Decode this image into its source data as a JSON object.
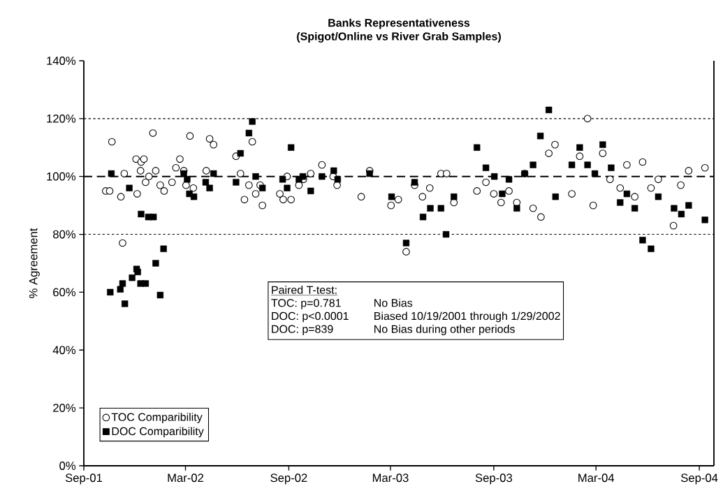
{
  "chart_data": {
    "type": "scatter",
    "title": "Banks Representativeness",
    "subtitle": "(Spigot/Online vs River Grab Samples)",
    "ylabel": "% Agreement",
    "xlim": [
      "2001-09-01",
      "2004-09-27"
    ],
    "xticks": [
      {
        "value": "2001-09-01",
        "label": "Sep-01"
      },
      {
        "value": "2002-03-01",
        "label": "Mar-02"
      },
      {
        "value": "2002-09-01",
        "label": "Sep-02"
      },
      {
        "value": "2003-03-01",
        "label": "Mar-03"
      },
      {
        "value": "2003-09-01",
        "label": "Sep-03"
      },
      {
        "value": "2004-03-01",
        "label": "Mar-04"
      },
      {
        "value": "2004-09-01",
        "label": "Sep-04"
      }
    ],
    "ylim": [
      0,
      140
    ],
    "yticks": [
      {
        "value": 0,
        "label": "0%"
      },
      {
        "value": 20,
        "label": "20%"
      },
      {
        "value": 40,
        "label": "40%"
      },
      {
        "value": 60,
        "label": "60%"
      },
      {
        "value": 80,
        "label": "80%"
      },
      {
        "value": 100,
        "label": "100%"
      },
      {
        "value": 120,
        "label": "120%"
      },
      {
        "value": 140,
        "label": "140%"
      }
    ],
    "legend": "bottom left",
    "ref_lines": [
      {
        "axis": "y",
        "value": 120,
        "line_style": "dotted",
        "color": "#000000"
      },
      {
        "axis": "y",
        "value": 100,
        "line_style": "dashed",
        "color": "#000000"
      },
      {
        "axis": "y",
        "value": 80,
        "line_style": "dotted",
        "color": "#000000"
      }
    ],
    "annotations": [
      "Paired T-test:",
      "TOC: p=0.781",
      "No Bias",
      "DOC: p<0.0001",
      "Biased 10/19/2001 through 1/29/2002",
      "DOC: p=839",
      "No Bias during other periods"
    ],
    "series": [
      {
        "name": "TOC Comparibility",
        "color": "#000000",
        "marker": "circle",
        "x": [
          "2001-10-10",
          "2001-10-17",
          "2001-10-21",
          "2001-11-06",
          "2001-11-09",
          "2001-11-12",
          "2001-12-03",
          "2001-12-05",
          "2001-12-11",
          "2001-12-12",
          "2001-12-17",
          "2001-12-20",
          "2001-12-26",
          "2002-01-02",
          "2002-01-07",
          "2002-01-15",
          "2002-01-22",
          "2002-02-05",
          "2002-02-12",
          "2002-02-19",
          "2002-02-26",
          "2002-03-02",
          "2002-03-09",
          "2002-03-15",
          "2002-04-07",
          "2002-04-13",
          "2002-04-20",
          "2002-05-30",
          "2002-06-07",
          "2002-06-14",
          "2002-06-22",
          "2002-06-28",
          "2002-07-04",
          "2002-07-12",
          "2002-07-16",
          "2002-08-16",
          "2002-08-22",
          "2002-08-29",
          "2002-09-05",
          "2002-09-19",
          "2002-09-27",
          "2002-10-10",
          "2002-10-30",
          "2002-11-19",
          "2002-11-26",
          "2003-01-08",
          "2003-01-23",
          "2003-03-02",
          "2003-03-15",
          "2003-03-29",
          "2003-04-13",
          "2003-04-27",
          "2003-05-10",
          "2003-05-30",
          "2003-06-09",
          "2003-06-22",
          "2003-08-02",
          "2003-08-18",
          "2003-09-01",
          "2003-09-14",
          "2003-09-28",
          "2003-10-12",
          "2003-10-26",
          "2003-11-10",
          "2003-11-24",
          "2003-12-08",
          "2003-12-19",
          "2004-01-18",
          "2004-02-01",
          "2004-02-15",
          "2004-02-25",
          "2004-03-13",
          "2004-03-26",
          "2004-04-13",
          "2004-04-25",
          "2004-05-09",
          "2004-05-23",
          "2004-06-07",
          "2004-06-20",
          "2004-07-17",
          "2004-07-30",
          "2004-08-13",
          "2004-09-11"
        ],
        "values": [
          95,
          95,
          112,
          93,
          77,
          101,
          106,
          94,
          102,
          105,
          106,
          98,
          100,
          115,
          102,
          97,
          95,
          98,
          103,
          106,
          102,
          97,
          114,
          96,
          102,
          113,
          111,
          107,
          101,
          92,
          97,
          112,
          94,
          97,
          90,
          94,
          92,
          100,
          92,
          97,
          99,
          101,
          104,
          100,
          97,
          93,
          102,
          90,
          92,
          74,
          97,
          93,
          96,
          101,
          101,
          91,
          95,
          98,
          94,
          91,
          95,
          91,
          101,
          89,
          86,
          108,
          111,
          94,
          107,
          120,
          90,
          108,
          99,
          96,
          104,
          93,
          105,
          96,
          99,
          83,
          97,
          102,
          103
        ]
      },
      {
        "name": "DOC Comparibility",
        "color": "#000000",
        "marker": "square",
        "x": [
          "2001-10-18",
          "2001-10-20",
          "2001-11-05",
          "2001-11-09",
          "2001-11-13",
          "2001-11-21",
          "2001-11-26",
          "2001-12-04",
          "2001-12-06",
          "2001-12-11",
          "2001-12-12",
          "2001-12-20",
          "2001-12-25",
          "2002-01-03",
          "2002-01-07",
          "2002-01-15",
          "2002-01-21",
          "2002-02-26",
          "2002-03-04",
          "2002-03-08",
          "2002-03-16",
          "2002-04-06",
          "2002-04-13",
          "2002-04-20",
          "2002-05-30",
          "2002-06-07",
          "2002-06-22",
          "2002-06-28",
          "2002-07-04",
          "2002-07-16",
          "2002-08-21",
          "2002-08-29",
          "2002-09-05",
          "2002-09-19",
          "2002-09-26",
          "2002-10-10",
          "2002-10-30",
          "2002-11-20",
          "2002-11-27",
          "2003-01-23",
          "2003-03-03",
          "2003-03-29",
          "2003-04-13",
          "2003-04-28",
          "2003-05-11",
          "2003-05-30",
          "2003-06-08",
          "2003-06-22",
          "2003-08-02",
          "2003-08-18",
          "2003-09-02",
          "2003-09-16",
          "2003-09-28",
          "2003-10-12",
          "2003-10-26",
          "2003-11-10",
          "2003-11-23",
          "2003-12-08",
          "2003-12-20",
          "2004-01-18",
          "2004-02-01",
          "2004-02-15",
          "2004-02-28",
          "2004-03-13",
          "2004-03-28",
          "2004-04-13",
          "2004-04-25",
          "2004-05-09",
          "2004-05-23",
          "2004-06-07",
          "2004-06-20",
          "2004-07-18",
          "2004-07-31",
          "2004-08-13",
          "2004-09-11"
        ],
        "values": [
          60,
          101,
          61,
          63,
          56,
          96,
          65,
          68,
          67,
          63,
          87,
          63,
          86,
          86,
          70,
          59,
          75,
          101,
          99,
          94,
          93,
          98,
          96,
          101,
          98,
          108,
          115,
          119,
          100,
          96,
          99,
          96,
          110,
          99,
          100,
          95,
          100,
          102,
          99,
          101,
          93,
          77,
          98,
          86,
          89,
          89,
          80,
          93,
          110,
          103,
          100,
          94,
          99,
          89,
          101,
          104,
          114,
          123,
          93,
          104,
          110,
          104,
          101,
          111,
          103,
          91,
          94,
          89,
          78,
          75,
          93,
          89,
          87,
          90,
          85
        ]
      }
    ]
  }
}
